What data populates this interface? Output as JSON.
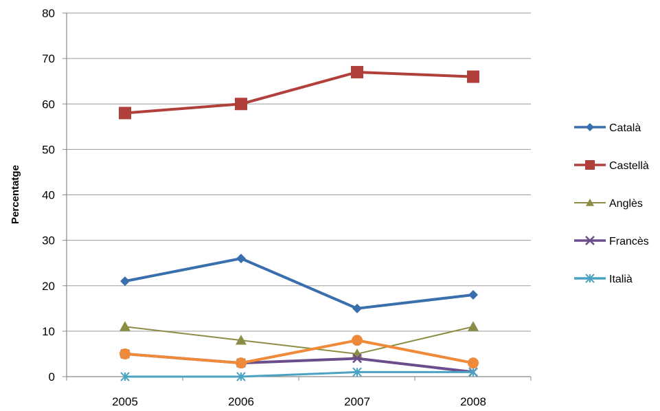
{
  "chart_data": {
    "type": "line",
    "title": "",
    "xlabel": "",
    "ylabel": "Percentatge",
    "x": [
      "2005",
      "2006",
      "2007",
      "2008"
    ],
    "ylim": [
      0,
      80
    ],
    "yticks": [
      0,
      10,
      20,
      30,
      40,
      50,
      60,
      70,
      80
    ],
    "grid": true,
    "legend_position": "right",
    "series": [
      {
        "name": "Català",
        "values": [
          21,
          26,
          15,
          18
        ],
        "color": "#3A6FAE",
        "marker": "diamond",
        "in_legend": true
      },
      {
        "name": "Castellà",
        "values": [
          58,
          60,
          67,
          66
        ],
        "color": "#B2403A",
        "marker": "square",
        "in_legend": true
      },
      {
        "name": "Anglès",
        "values": [
          11,
          8,
          5,
          11
        ],
        "color": "#8C8D44",
        "marker": "triangle",
        "in_legend": true
      },
      {
        "name": "Francès",
        "values": [
          5,
          3,
          4,
          1
        ],
        "color": "#6B4D8C",
        "marker": "x",
        "in_legend": true
      },
      {
        "name": "Italià",
        "values": [
          0,
          0,
          1,
          1
        ],
        "color": "#4BA3C3",
        "marker": "star",
        "in_legend": true
      },
      {
        "name": "",
        "values": [
          5,
          3,
          8,
          3
        ],
        "color": "#EE8A3A",
        "marker": "circle",
        "in_legend": false
      }
    ]
  }
}
